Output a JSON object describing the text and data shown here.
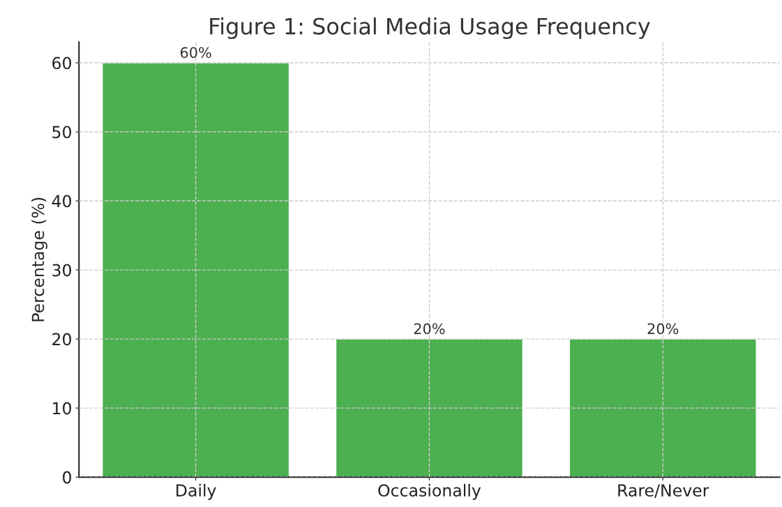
{
  "chart_data": {
    "type": "bar",
    "title": "Figure 1: Social Media Usage Frequency",
    "ylabel": "Percentage (%)",
    "categories": [
      "Daily",
      "Occasionally",
      "Rare/Never"
    ],
    "values": [
      60,
      20,
      20
    ],
    "color": "#4caf50",
    "value_labels": [
      "60%",
      "20%",
      "20%"
    ],
    "ylim": [
      0,
      63
    ],
    "yticks": [
      0,
      10,
      20,
      30,
      40,
      50,
      60
    ],
    "grid": true
  }
}
